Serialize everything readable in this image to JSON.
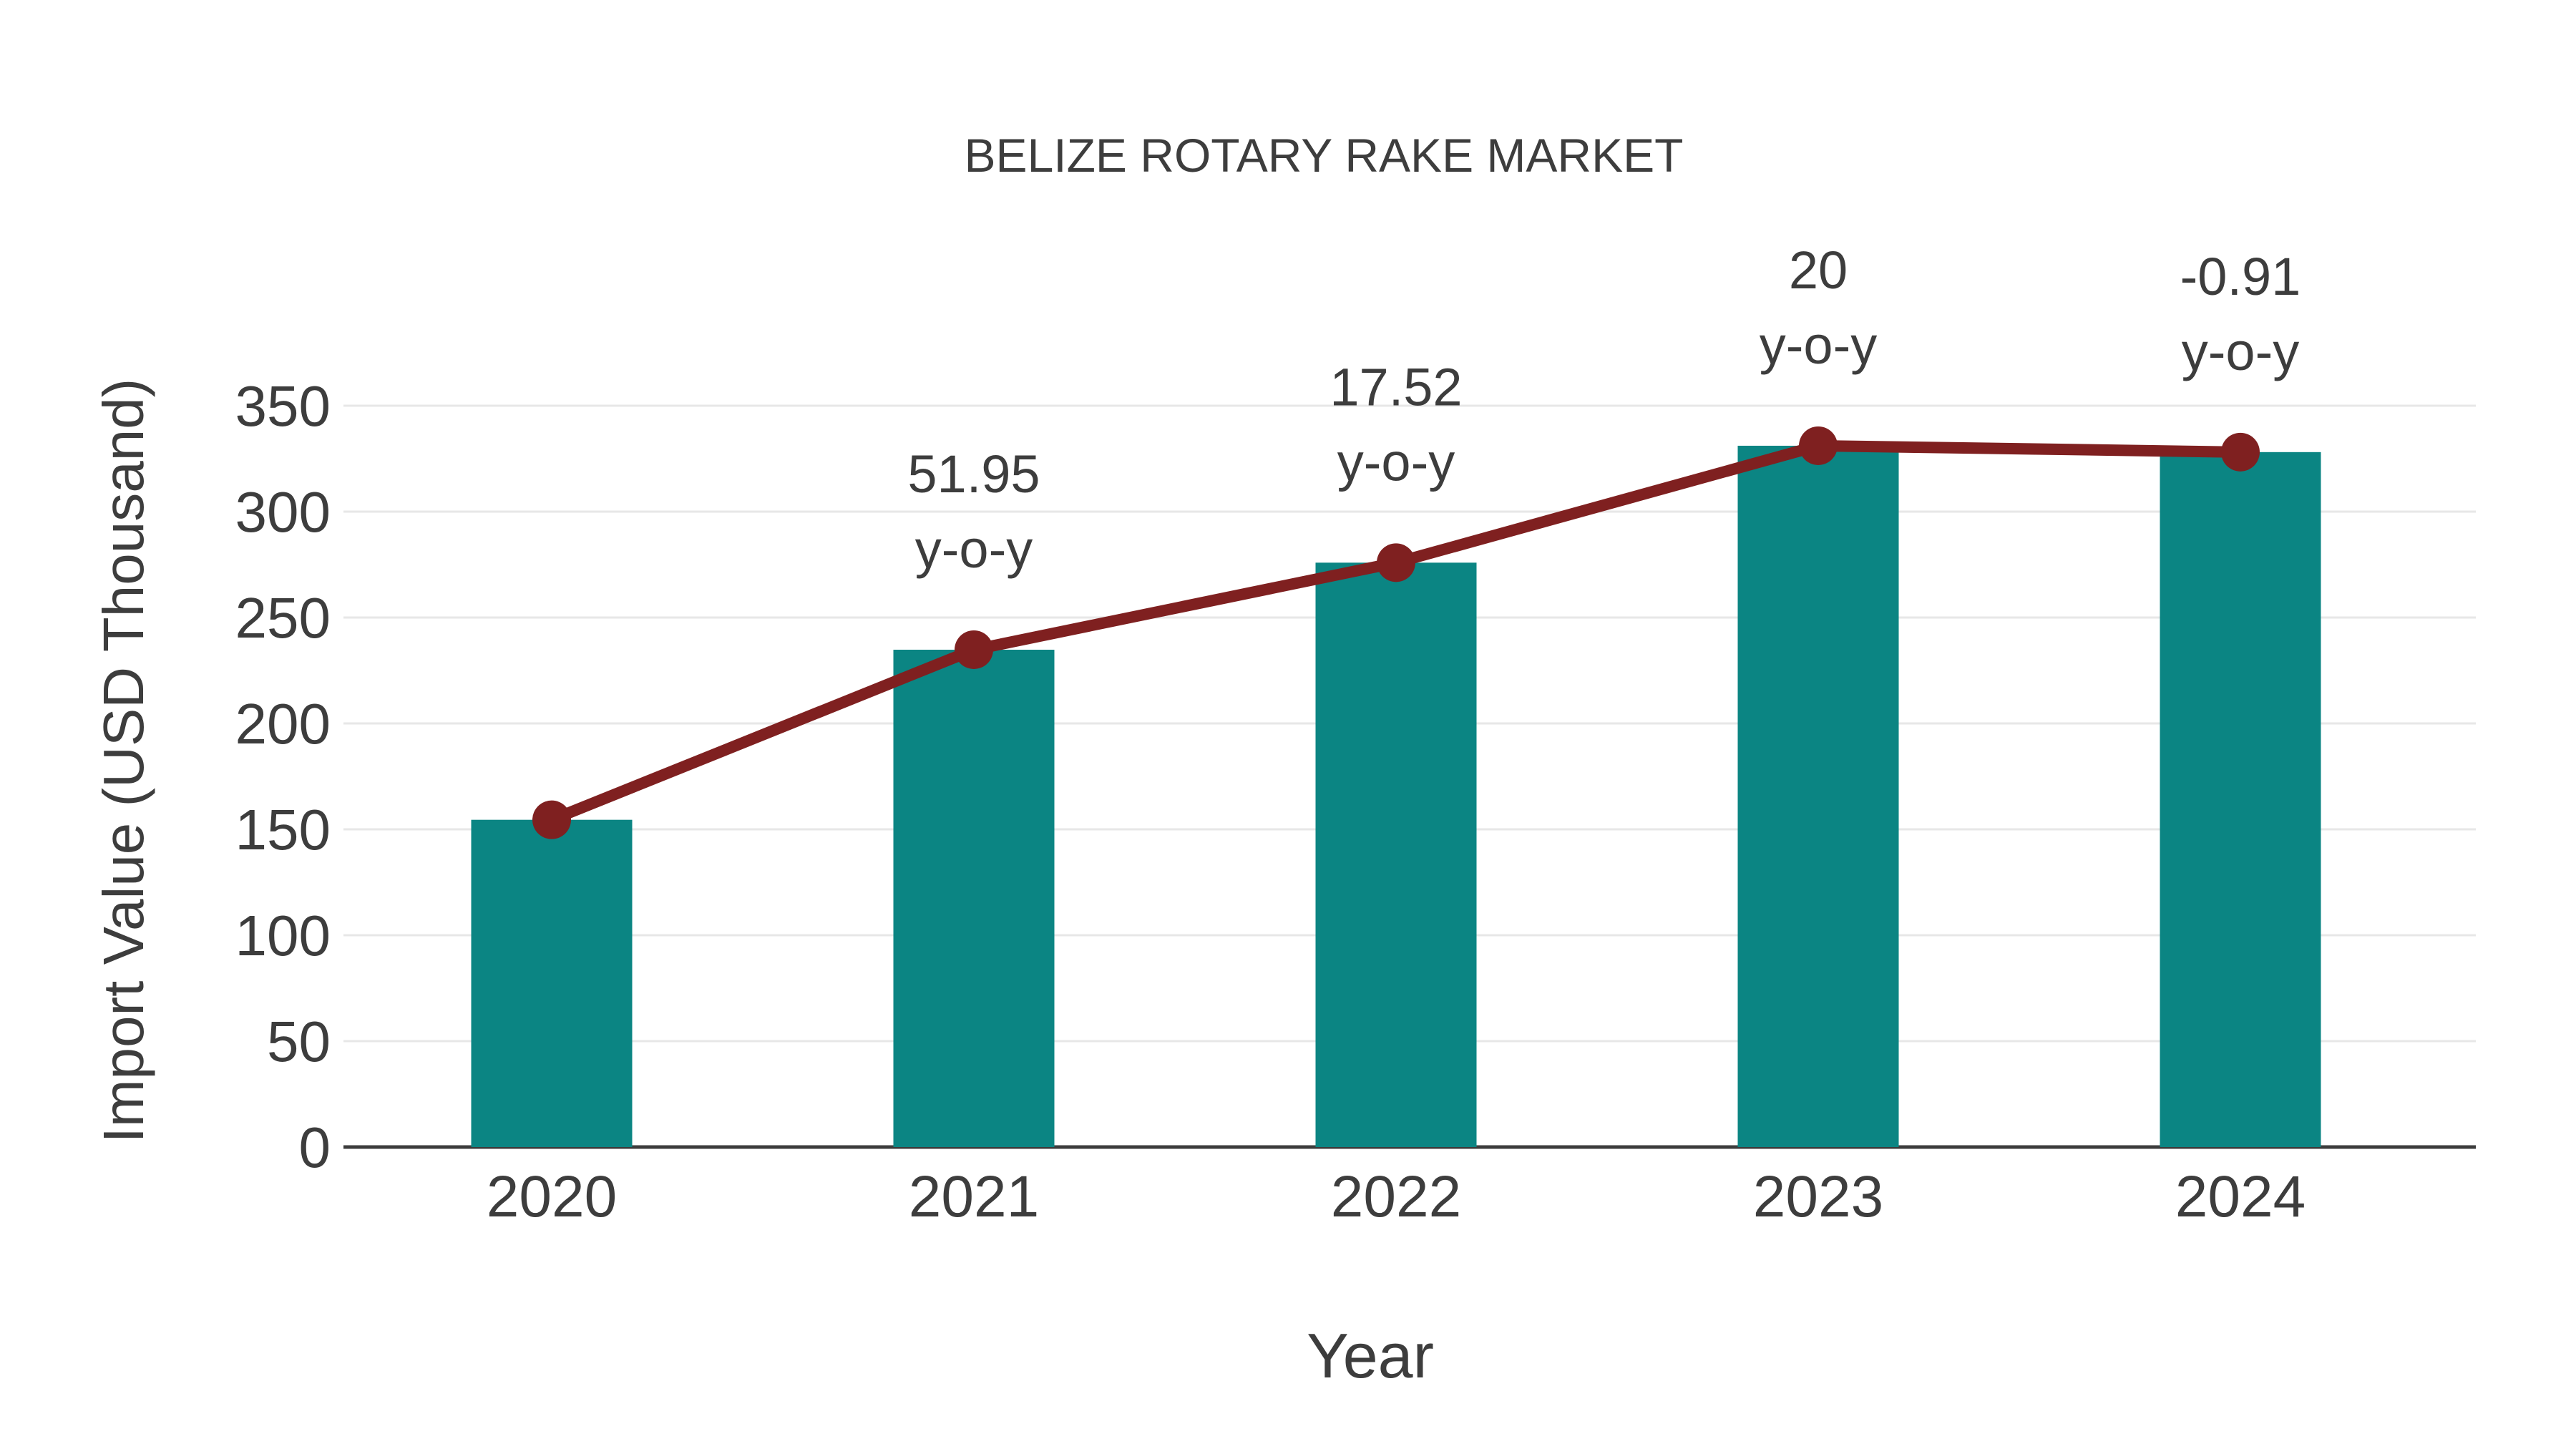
{
  "page": {
    "background": "#ffffff"
  },
  "chart_data": {
    "type": "bar",
    "title": "BELIZE ROTARY RAKE MARKET",
    "xlabel": "Year",
    "ylabel": "Import Value (USD Thousand)",
    "categories": [
      "2020",
      "2021",
      "2022",
      "2023",
      "2024"
    ],
    "series": [
      {
        "name": "Import Value bars",
        "type": "bar",
        "color": "#0B8583",
        "values": [
          154.5,
          234.8,
          275.9,
          331.1,
          328.1
        ]
      },
      {
        "name": "Import Value trend line",
        "type": "line",
        "color": "#7F2020",
        "marker": "circle",
        "values": [
          154.5,
          234.8,
          275.9,
          331.1,
          328.1
        ]
      }
    ],
    "annotations": [
      {
        "category": "2021",
        "value_label": "51.95",
        "suffix": "y-o-y"
      },
      {
        "category": "2022",
        "value_label": "17.52",
        "suffix": "y-o-y"
      },
      {
        "category": "2023",
        "value_label": "20",
        "suffix": "y-o-y"
      },
      {
        "category": "2024",
        "value_label": "-0.91",
        "suffix": "y-o-y"
      }
    ],
    "ylim": [
      0,
      350
    ],
    "yticks": [
      0,
      50,
      100,
      150,
      200,
      250,
      300,
      350
    ],
    "grid": true,
    "legend_position": "none",
    "colors": {
      "text": "#3D3D3D",
      "gridline": "#E7E7E7",
      "axis_line": "#3C3C3C",
      "background": "#ffffff"
    }
  }
}
